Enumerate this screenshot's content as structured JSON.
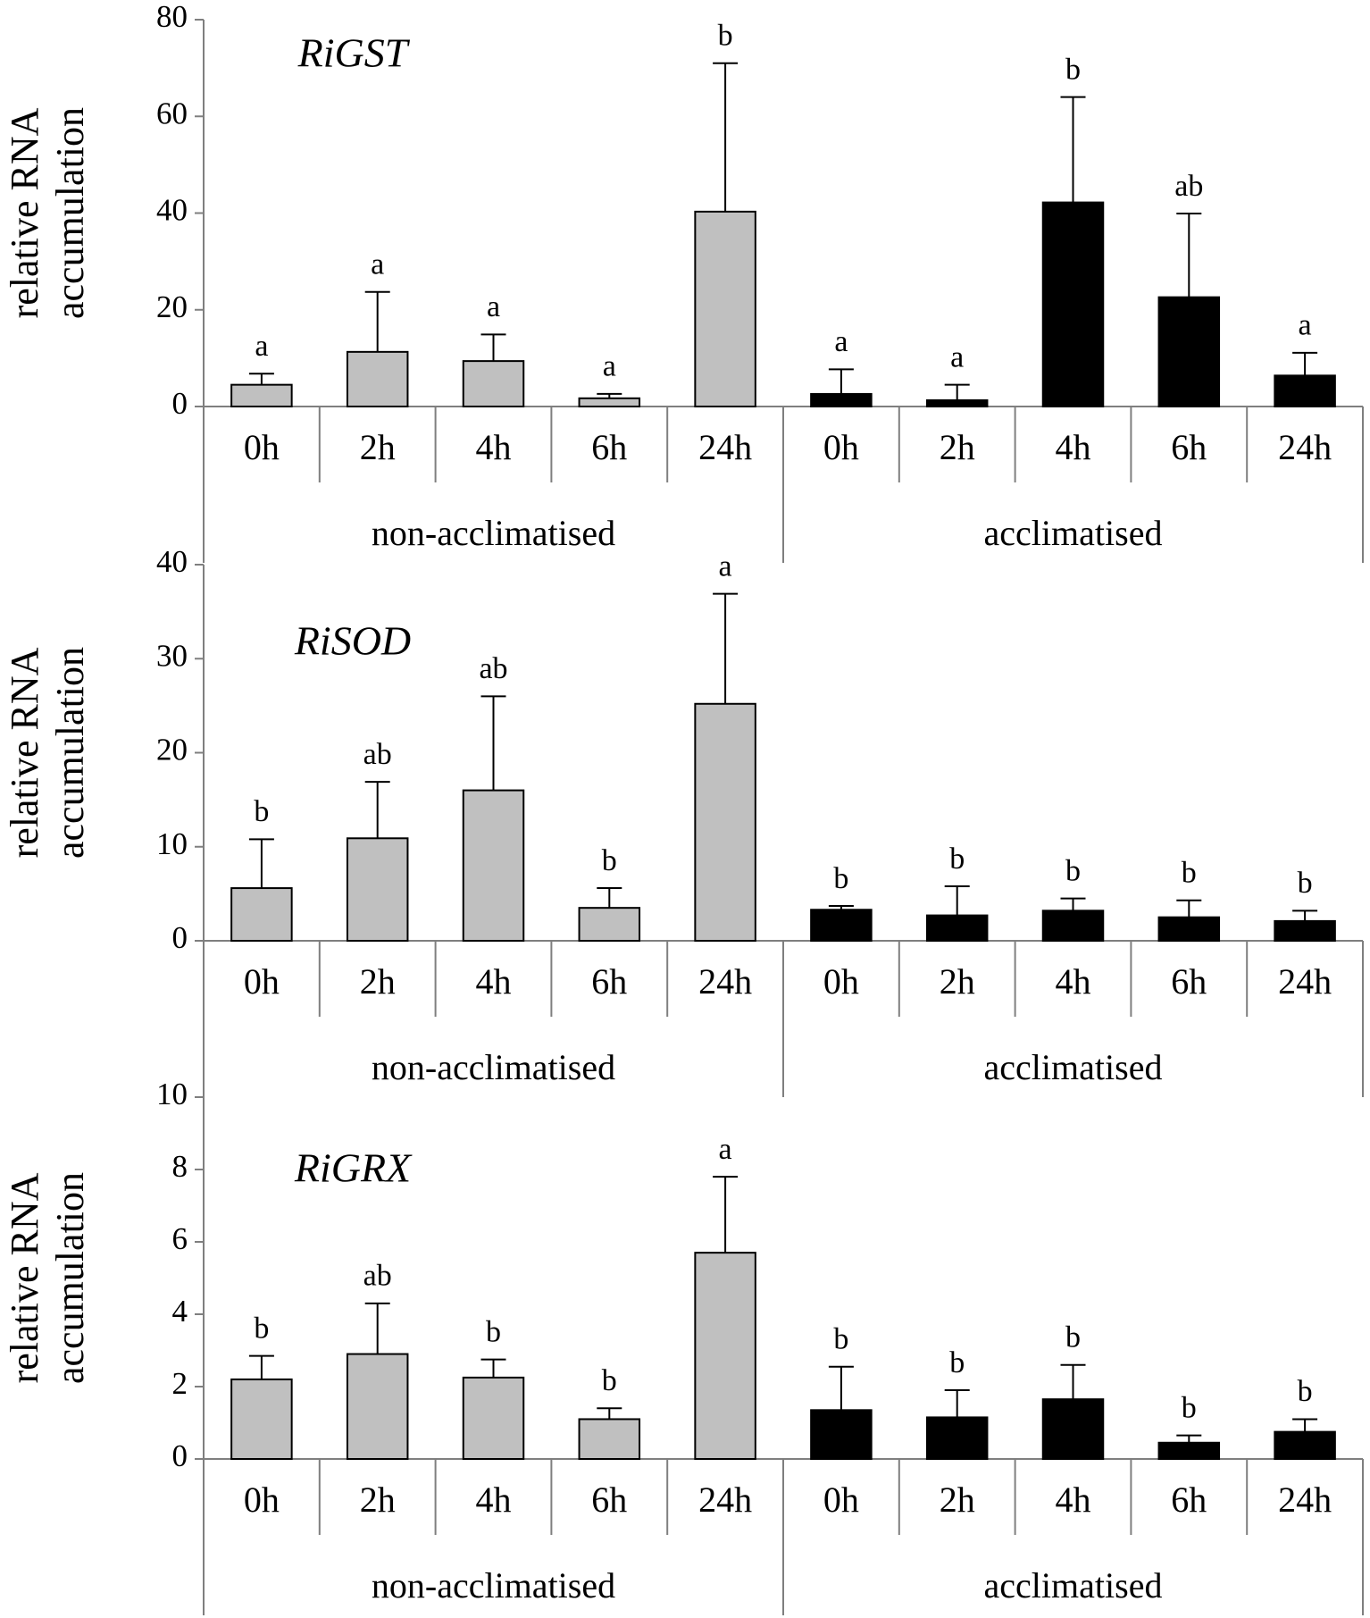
{
  "chart_data": [
    {
      "type": "bar",
      "title": "RiGST",
      "ylabel": [
        "relative RNA",
        "accumulation"
      ],
      "ylim": [
        0,
        80
      ],
      "yticks": [
        0,
        20,
        40,
        60,
        80
      ],
      "groups": [
        {
          "name": "non-acclimatised",
          "color": "#c0c0c0",
          "categories": [
            "0h",
            "2h",
            "4h",
            "6h",
            "24h"
          ],
          "values": [
            4.5,
            11.3,
            9.4,
            1.7,
            40.3
          ],
          "errors": [
            2.3,
            12.4,
            5.5,
            0.9,
            30.7
          ],
          "letters": [
            "a",
            "a",
            "a",
            "a",
            "b"
          ]
        },
        {
          "name": "acclimatised",
          "color": "#000000",
          "categories": [
            "0h",
            "2h",
            "4h",
            "6h",
            "24h"
          ],
          "values": [
            2.6,
            1.3,
            42.2,
            22.6,
            6.4
          ],
          "errors": [
            5.1,
            3.2,
            21.8,
            17.3,
            4.7
          ],
          "letters": [
            "a",
            "a",
            "b",
            "ab",
            "a"
          ]
        }
      ]
    },
    {
      "type": "bar",
      "title": "RiSOD",
      "ylabel": [
        "relative RNA",
        "accumulation"
      ],
      "ylim": [
        0,
        40
      ],
      "yticks": [
        0,
        10,
        20,
        30,
        40
      ],
      "groups": [
        {
          "name": "non-acclimatised",
          "color": "#c0c0c0",
          "categories": [
            "0h",
            "2h",
            "4h",
            "6h",
            "24h"
          ],
          "values": [
            5.6,
            10.9,
            16.0,
            3.5,
            25.2
          ],
          "errors": [
            5.2,
            6.0,
            10.0,
            2.1,
            11.7
          ],
          "letters": [
            "b",
            "ab",
            "ab",
            "b",
            "a"
          ]
        },
        {
          "name": "acclimatised",
          "color": "#000000",
          "categories": [
            "0h",
            "2h",
            "4h",
            "6h",
            "24h"
          ],
          "values": [
            3.3,
            2.7,
            3.2,
            2.5,
            2.1
          ],
          "errors": [
            0.4,
            3.1,
            1.3,
            1.8,
            1.1
          ],
          "letters": [
            "b",
            "b",
            "b",
            "b",
            "b"
          ]
        }
      ]
    },
    {
      "type": "bar",
      "title": "RiGRX",
      "ylabel": [
        "relative RNA",
        "accumulation"
      ],
      "ylim": [
        0,
        10
      ],
      "yticks": [
        0,
        2,
        4,
        6,
        8,
        10
      ],
      "groups": [
        {
          "name": "non-acclimatised",
          "color": "#c0c0c0",
          "categories": [
            "0h",
            "2h",
            "4h",
            "6h",
            "24h"
          ],
          "values": [
            2.2,
            2.9,
            2.25,
            1.1,
            5.7
          ],
          "errors": [
            0.65,
            1.4,
            0.5,
            0.3,
            2.1
          ],
          "letters": [
            "b",
            "ab",
            "b",
            "b",
            "a"
          ]
        },
        {
          "name": "acclimatised",
          "color": "#000000",
          "categories": [
            "0h",
            "2h",
            "4h",
            "6h",
            "24h"
          ],
          "values": [
            1.35,
            1.15,
            1.65,
            0.45,
            0.75
          ],
          "errors": [
            1.2,
            0.75,
            0.95,
            0.2,
            0.35
          ],
          "letters": [
            "b",
            "b",
            "b",
            "b",
            "b"
          ]
        }
      ]
    }
  ]
}
